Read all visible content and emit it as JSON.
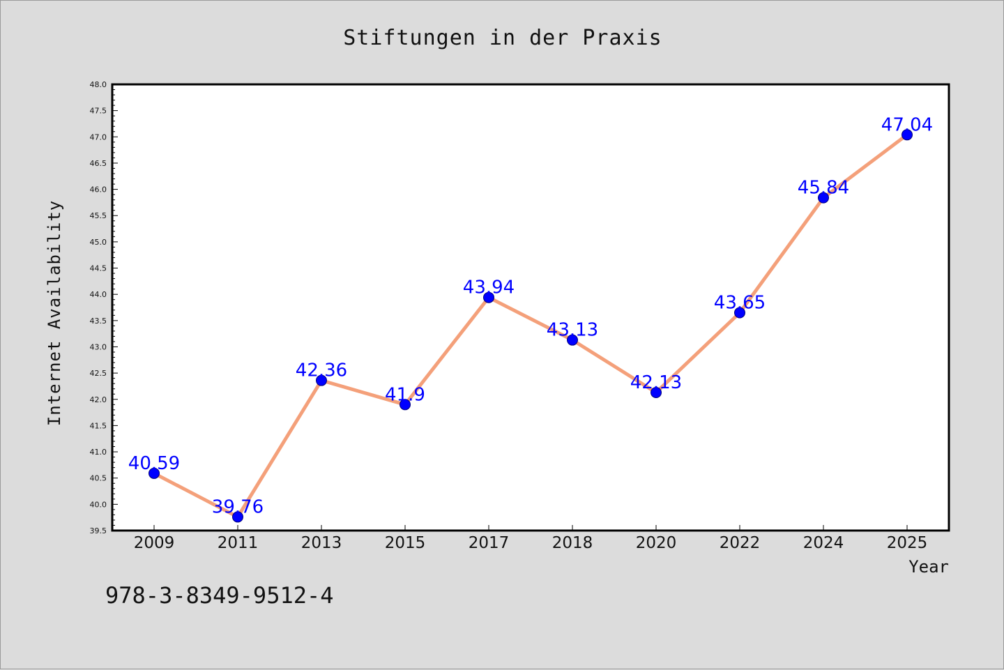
{
  "chart_data": {
    "type": "line",
    "title": "Stiftungen in der Praxis",
    "xlabel": "Year",
    "ylabel": "Internet Availability",
    "categories": [
      "2009",
      "2011",
      "2013",
      "2015",
      "2017",
      "2018",
      "2020",
      "2022",
      "2024",
      "2025"
    ],
    "series": [
      {
        "values": [
          40.59,
          39.76,
          42.36,
          41.9,
          43.94,
          43.13,
          42.13,
          43.65,
          45.84,
          47.04
        ],
        "labels": [
          "40.59",
          "39.76",
          "42.36",
          "41.9",
          "43.94",
          "43.13",
          "42.13",
          "43.65",
          "45.84",
          "47.04"
        ]
      }
    ],
    "ylim": [
      39.5,
      48.0
    ],
    "yticks": [
      "39.5",
      "40.0",
      "40.5",
      "41.0",
      "41.5",
      "42.0",
      "42.5",
      "43.0",
      "43.5",
      "44.0",
      "44.5",
      "45.0",
      "45.5",
      "46.0",
      "46.5",
      "47.0",
      "47.5",
      "48.0"
    ],
    "grid": false,
    "legend": "none",
    "colors": {
      "line": "#f4a07a",
      "marker": "#0000ff",
      "label": "#0000ff",
      "background": "#dcdcdc",
      "plot_background": "#ffffff"
    }
  },
  "annotation": "978-3-8349-9512-4"
}
